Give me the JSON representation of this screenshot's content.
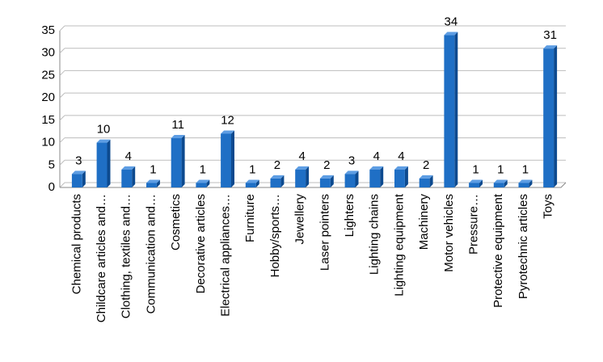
{
  "chart_data": {
    "type": "bar3d",
    "categories": [
      "Chemical products",
      "Childcare articles and…",
      "Clothing, textiles and…",
      "Communication and…",
      "Cosmetics",
      "Decorative articles",
      "Electrical appliances…",
      "Furniture",
      "Hobby/sports…",
      "Jewellery",
      "Laser pointers",
      "Lighters",
      "Lighting chains",
      "Lighting equipment",
      "Machinery",
      "Motor vehicles",
      "Pressure…",
      "Protective equipment",
      "Pyrotechnic articles",
      "Toys"
    ],
    "values": [
      3,
      10,
      4,
      1,
      11,
      1,
      12,
      1,
      2,
      4,
      2,
      3,
      4,
      4,
      2,
      34,
      1,
      1,
      1,
      31
    ],
    "color": "#1f6fc5",
    "ylim": [
      0,
      35
    ],
    "yticks": [
      0,
      5,
      10,
      15,
      20,
      25,
      30,
      35
    ],
    "grid": true
  }
}
